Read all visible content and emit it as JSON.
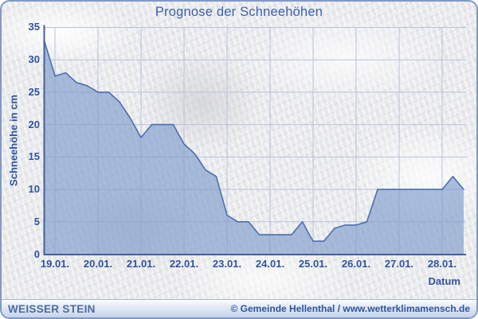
{
  "chart_data": {
    "type": "area",
    "title": "Prognose der Schneehöhen",
    "xlabel": "Datum",
    "ylabel": "Schneehöhe in cm",
    "x_tick_labels": [
      "19.01.",
      "20.01.",
      "21.01.",
      "22.01.",
      "23.01.",
      "24.01.",
      "25.01.",
      "26.01.",
      "27.01.",
      "28.01."
    ],
    "x_tick_days": [
      19,
      20,
      21,
      22,
      23,
      24,
      25,
      26,
      27,
      28
    ],
    "y_ticks": [
      0,
      5,
      10,
      15,
      20,
      25,
      30,
      35
    ],
    "ylim": [
      0,
      35
    ],
    "grid": true,
    "legend": "none",
    "series": [
      {
        "name": "Schneehöhe in cm",
        "x": [
          18.75,
          19.0,
          19.25,
          19.5,
          19.75,
          20.0,
          20.25,
          20.5,
          20.75,
          21.0,
          21.25,
          21.5,
          21.75,
          22.0,
          22.25,
          22.5,
          22.75,
          23.0,
          23.25,
          23.5,
          23.75,
          24.0,
          24.25,
          24.5,
          24.75,
          25.0,
          25.25,
          25.5,
          25.75,
          26.0,
          26.25,
          26.5,
          26.75,
          27.0,
          27.25,
          27.5,
          27.75,
          28.0,
          28.25,
          28.5
        ],
        "values": [
          33,
          27.5,
          28,
          26.5,
          26,
          25,
          25,
          23.5,
          21,
          18,
          20,
          20,
          20,
          17,
          15.5,
          13,
          12,
          6,
          5,
          5,
          3,
          3,
          3,
          3,
          5,
          2,
          2,
          4,
          4.5,
          4.5,
          5,
          10,
          10,
          10,
          10,
          10,
          10,
          10,
          12,
          10
        ]
      }
    ]
  },
  "footer": {
    "station": "WEISSER STEIN",
    "copyright": "© Gemeinde Hellenthal / www.wetterklimamensch.de"
  },
  "colors": {
    "accent": "#3a62ad",
    "label": "#2f549e",
    "grid": "#b7c3da",
    "axis": "#41619f",
    "area_fill": "#7a98ca",
    "area_line": "#4a6fae"
  }
}
